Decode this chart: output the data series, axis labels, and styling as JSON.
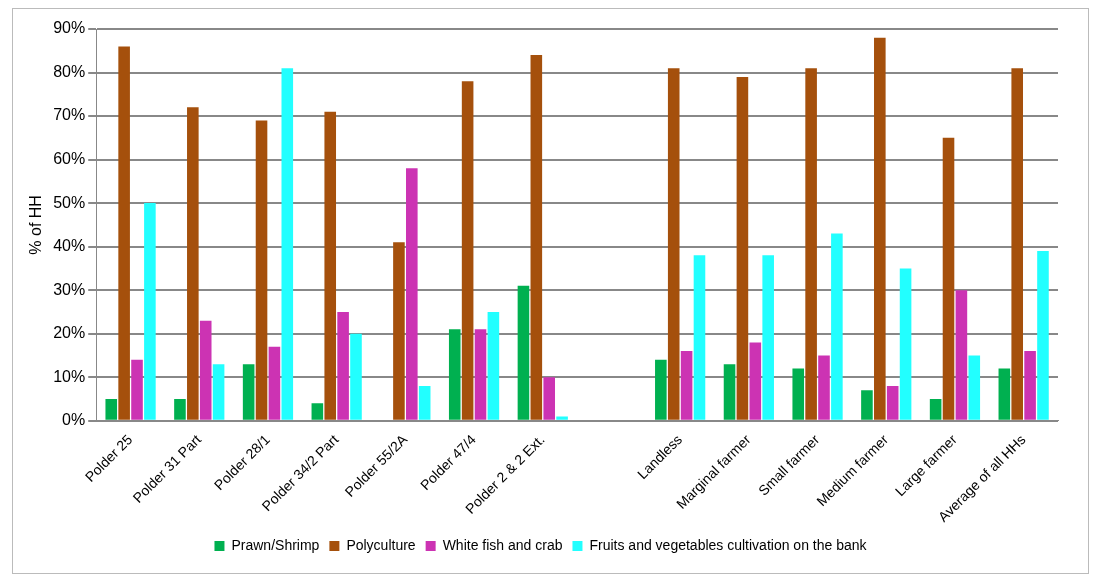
{
  "chart_data": {
    "type": "bar",
    "ylabel": "% of HH",
    "categories": [
      "Polder 25",
      "Polder 31 Part",
      "Polder 28/1",
      "Polder 34/2 Part",
      "Polder 55/2A",
      "Polder 47/4",
      "Polder 2 & 2 Ext.",
      null,
      "Landless",
      "Marginal farmer",
      "Small farmer",
      "Medium farmer",
      "Large farmer",
      "Average of all HHs"
    ],
    "series": [
      {
        "name": "Prawn/Shrimp",
        "color": "#00b050",
        "values": [
          5,
          5,
          13,
          4,
          0,
          21,
          31,
          null,
          14,
          13,
          12,
          7,
          5,
          12
        ]
      },
      {
        "name": "Polyculture",
        "color": "#a5500c",
        "values": [
          86,
          72,
          69,
          71,
          41,
          78,
          84,
          null,
          81,
          79,
          81,
          88,
          65,
          81
        ]
      },
      {
        "name": "White fish and crab",
        "color": "#cc33b3",
        "values": [
          14,
          23,
          17,
          25,
          58,
          21,
          10,
          null,
          16,
          18,
          15,
          8,
          30,
          16
        ]
      },
      {
        "name": "Fruits and vegetables cultivation on the bank",
        "color": "#22ffff",
        "values": [
          50,
          13,
          81,
          20,
          8,
          25,
          1,
          null,
          38,
          38,
          43,
          35,
          15,
          39
        ]
      }
    ],
    "ylim": [
      0,
      90
    ],
    "yticks": [
      {
        "value": 0,
        "label": "0%"
      },
      {
        "value": 10,
        "label": "10%"
      },
      {
        "value": 20,
        "label": "20%"
      },
      {
        "value": 30,
        "label": "30%"
      },
      {
        "value": 40,
        "label": "40%"
      },
      {
        "value": 50,
        "label": "50%"
      },
      {
        "value": 60,
        "label": "60%"
      },
      {
        "value": 70,
        "label": "70%"
      },
      {
        "value": 80,
        "label": "80%"
      },
      {
        "value": 90,
        "label": "90%"
      }
    ],
    "grid": "y",
    "legend": "bottom"
  }
}
